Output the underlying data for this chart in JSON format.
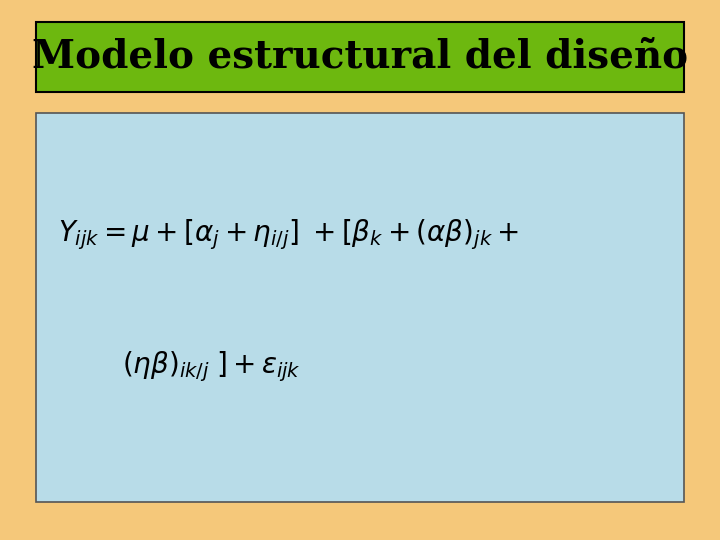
{
  "title": "Modelo estructural del diseño",
  "title_bg_color": "#6db80f",
  "title_text_color": "#000000",
  "title_border_color": "#000000",
  "outer_bg_color": "#f5c87a",
  "inner_bg_color": "#b8dce8",
  "inner_border_color": "#555555",
  "formula_color": "#000000",
  "formula_fontsize": 20,
  "title_fontsize": 28
}
